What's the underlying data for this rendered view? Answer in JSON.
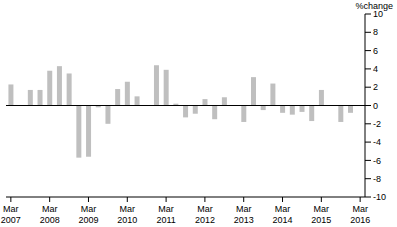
{
  "chart_data": {
    "type": "bar",
    "y_label": "%change",
    "categories": [
      "Mar 2007",
      null,
      null,
      null,
      "Mar 2008",
      null,
      null,
      null,
      "Mar 2009",
      null,
      null,
      null,
      "Mar 2010",
      null,
      null,
      null,
      "Mar 2011",
      null,
      null,
      null,
      "Mar 2012",
      null,
      null,
      null,
      "Mar 2013",
      null,
      null,
      null,
      "Mar 2014",
      null,
      null,
      null,
      "Mar 2015",
      null,
      null,
      null,
      "Mar 2016"
    ],
    "values": [
      2.3,
      0,
      1.7,
      1.7,
      3.8,
      4.3,
      3.5,
      -5.7,
      -5.6,
      -0.2,
      -2.0,
      1.8,
      2.6,
      1.0,
      0,
      4.4,
      3.9,
      0.2,
      -1.3,
      -0.9,
      0.7,
      -1.5,
      0.9,
      0,
      -1.8,
      3.1,
      -0.5,
      2.4,
      -0.8,
      -1.0,
      -0.7,
      -1.7,
      1.7,
      0,
      -1.8,
      -0.8,
      0
    ],
    "color": "#bfbfbf",
    "ylim": [
      -10,
      10
    ],
    "yticks": [
      -10,
      -8,
      -6,
      -4,
      -2,
      0,
      2,
      4,
      6,
      8,
      10
    ],
    "grid": false
  }
}
